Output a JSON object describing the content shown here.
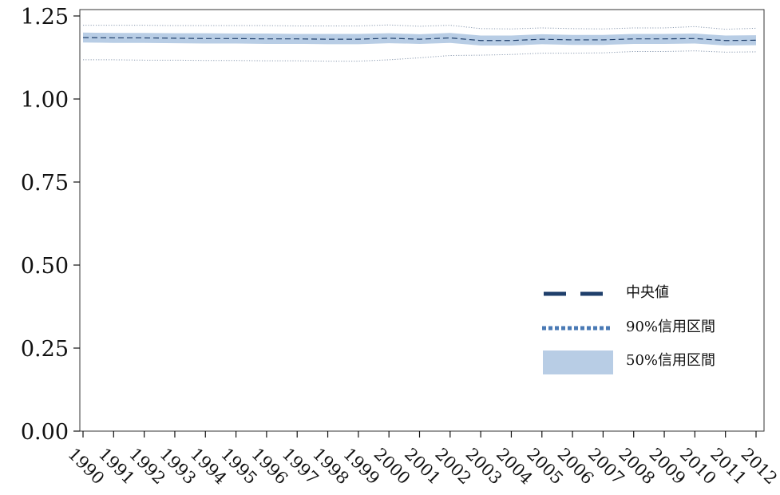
{
  "chart_data": {
    "type": "line",
    "title": "",
    "xlabel": "",
    "ylabel": "",
    "x": [
      1990,
      1991,
      1992,
      1993,
      1994,
      1995,
      1996,
      1997,
      1998,
      1999,
      2000,
      2001,
      2002,
      2003,
      2004,
      2005,
      2006,
      2007,
      2008,
      2009,
      2010,
      2011,
      2012
    ],
    "x_tick_labels": [
      "1990",
      "1991",
      "1992",
      "1993",
      "1994",
      "1995",
      "1996",
      "1997",
      "1998",
      "1999",
      "2000",
      "2001",
      "2002",
      "2003",
      "2004",
      "2005",
      "2006",
      "2007",
      "2008",
      "2009",
      "2010",
      "2011",
      "2012"
    ],
    "ylim": [
      0,
      1.25
    ],
    "y_ticks": [
      0.0,
      0.25,
      0.5,
      0.75,
      1.0,
      1.25
    ],
    "y_tick_labels": [
      "0.00",
      "0.25",
      "0.50",
      "0.75",
      "1.00",
      "1.25"
    ],
    "series": [
      {
        "name": "中央値",
        "style": "dashed",
        "color": "#1f3f6b",
        "values": [
          1.185,
          1.184,
          1.184,
          1.183,
          1.182,
          1.182,
          1.181,
          1.181,
          1.18,
          1.18,
          1.183,
          1.18,
          1.184,
          1.176,
          1.176,
          1.18,
          1.178,
          1.178,
          1.181,
          1.181,
          1.182,
          1.176,
          1.177
        ]
      },
      {
        "name": "90%信用区間",
        "style": "dotted",
        "color": "#4a7ab5",
        "lower": [
          1.118,
          1.118,
          1.117,
          1.117,
          1.116,
          1.116,
          1.115,
          1.115,
          1.114,
          1.114,
          1.118,
          1.124,
          1.131,
          1.132,
          1.134,
          1.138,
          1.138,
          1.139,
          1.143,
          1.143,
          1.145,
          1.141,
          1.142
        ],
        "upper": [
          1.222,
          1.222,
          1.222,
          1.221,
          1.221,
          1.221,
          1.221,
          1.22,
          1.22,
          1.22,
          1.223,
          1.219,
          1.222,
          1.212,
          1.211,
          1.214,
          1.212,
          1.211,
          1.214,
          1.214,
          1.218,
          1.21,
          1.213
        ]
      },
      {
        "name": "50%信用区間",
        "style": "band",
        "color": "#b8cde5",
        "lower": [
          1.17,
          1.169,
          1.169,
          1.168,
          1.167,
          1.167,
          1.166,
          1.166,
          1.165,
          1.165,
          1.168,
          1.166,
          1.169,
          1.161,
          1.161,
          1.165,
          1.163,
          1.163,
          1.166,
          1.166,
          1.167,
          1.161,
          1.162
        ],
        "upper": [
          1.2,
          1.199,
          1.199,
          1.198,
          1.198,
          1.197,
          1.197,
          1.196,
          1.196,
          1.196,
          1.198,
          1.195,
          1.199,
          1.191,
          1.191,
          1.195,
          1.193,
          1.193,
          1.196,
          1.196,
          1.197,
          1.191,
          1.192
        ]
      }
    ],
    "legend": {
      "position": "bottom-right",
      "items": [
        {
          "label": "中央値",
          "style": "dashed",
          "color": "#1f3f6b"
        },
        {
          "label": "90%信用区間",
          "style": "dotted",
          "color": "#4a7ab5"
        },
        {
          "label": "50%信用区間",
          "style": "band",
          "color": "#b8cde5"
        }
      ]
    },
    "grid": false
  }
}
